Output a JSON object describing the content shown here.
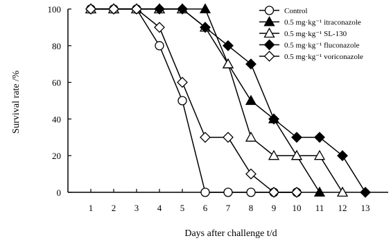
{
  "chart_data": {
    "type": "line",
    "xlabel": "Days after challenge t/d",
    "ylabel": "Survival rate /%",
    "x_ticks": [
      1,
      2,
      3,
      4,
      5,
      6,
      7,
      8,
      9,
      10,
      11,
      12,
      13
    ],
    "y_ticks": [
      0,
      20,
      40,
      60,
      80,
      100
    ],
    "xlim": [
      0,
      14
    ],
    "ylim": [
      0,
      100
    ],
    "grid": false,
    "legend_position": "top-right",
    "series": [
      {
        "name": "Control",
        "marker": "circle",
        "fill": "#ffffff",
        "x": [
          1,
          2,
          3,
          4,
          5,
          6,
          7,
          8,
          9,
          10
        ],
        "y": [
          100,
          100,
          100,
          80,
          50,
          0,
          0,
          0,
          0,
          0
        ]
      },
      {
        "name": "0.5 mg·kg⁻¹ itraconazole",
        "marker": "triangle",
        "fill": "#000000",
        "x": [
          1,
          2,
          3,
          4,
          5,
          6,
          7,
          8,
          9,
          10,
          11
        ],
        "y": [
          100,
          100,
          100,
          100,
          100,
          100,
          70,
          50,
          40,
          20,
          0
        ]
      },
      {
        "name": "0.5 mg·kg⁻¹ SL-130",
        "marker": "triangle",
        "fill": "#ffffff",
        "x": [
          1,
          2,
          3,
          4,
          5,
          6,
          7,
          8,
          9,
          10,
          11,
          12
        ],
        "y": [
          100,
          100,
          100,
          100,
          100,
          90,
          70,
          30,
          20,
          20,
          20,
          0
        ]
      },
      {
        "name": "0.5 mg·kg⁻¹ fluconazole",
        "marker": "diamond",
        "fill": "#000000",
        "x": [
          1,
          2,
          3,
          4,
          5,
          6,
          7,
          8,
          9,
          10,
          11,
          12,
          13
        ],
        "y": [
          100,
          100,
          100,
          100,
          100,
          90,
          80,
          70,
          40,
          30,
          30,
          20,
          0
        ]
      },
      {
        "name": "0.5 mg·kg⁻¹ voriconazole",
        "marker": "diamond",
        "fill": "#ffffff",
        "x": [
          1,
          2,
          3,
          4,
          5,
          6,
          7,
          8,
          9,
          10
        ],
        "y": [
          100,
          100,
          100,
          90,
          60,
          30,
          30,
          10,
          0,
          0
        ]
      }
    ]
  }
}
